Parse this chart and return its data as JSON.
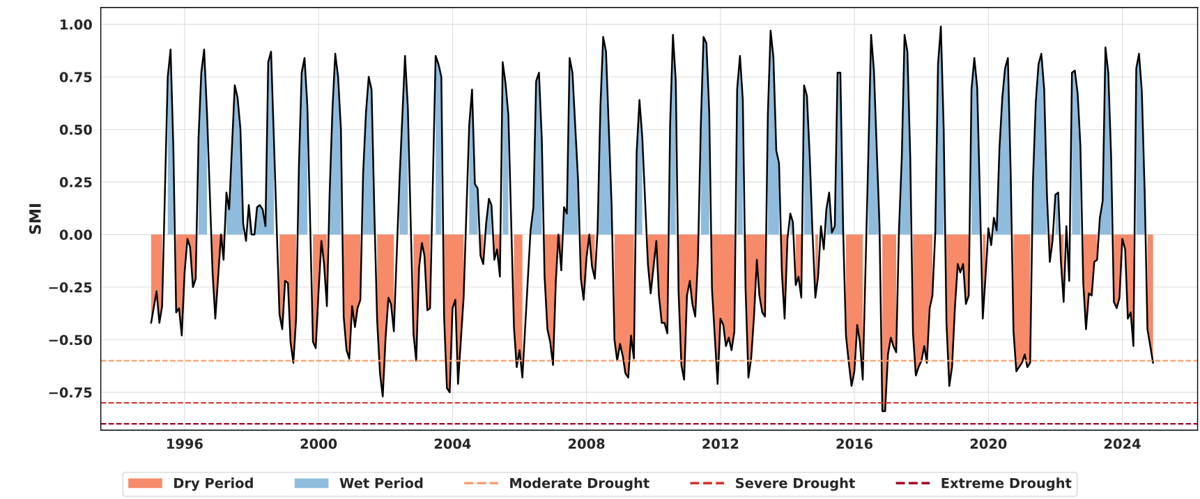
{
  "chart_data": {
    "type": "area",
    "ylabel": "SMI",
    "x": [
      "1995-01",
      "1995-03",
      "1995-04",
      "1995-05",
      "1995-07",
      "1995-08",
      "1995-09",
      "1995-10",
      "1995-11",
      "1995-12",
      "1996-01",
      "1996-02",
      "1996-03",
      "1996-04",
      "1996-05",
      "1996-06",
      "1996-07",
      "1996-08",
      "1996-09",
      "1996-11",
      "1996-12",
      "1997-02",
      "1997-03",
      "1997-04",
      "1997-05",
      "1997-07",
      "1997-08",
      "1997-09",
      "1997-10",
      "1997-11",
      "1997-12",
      "1998-01",
      "1998-02",
      "1998-03",
      "1998-04",
      "1998-05",
      "1998-06",
      "1998-07",
      "1998-08",
      "1998-09",
      "1998-11",
      "1998-12",
      "1999-01",
      "1999-02",
      "1999-03",
      "1999-04",
      "1999-05",
      "1999-06",
      "1999-07",
      "1999-08",
      "1999-09",
      "1999-11",
      "1999-12",
      "2000-01",
      "2000-02",
      "2000-03",
      "2000-04",
      "2000-05",
      "2000-06",
      "2000-07",
      "2000-08",
      "2000-09",
      "2000-10",
      "2000-11",
      "2000-12",
      "2001-01",
      "2001-02",
      "2001-03",
      "2001-04",
      "2001-05",
      "2001-06",
      "2001-07",
      "2001-08",
      "2001-09",
      "2001-10",
      "2001-11",
      "2001-12",
      "2002-01",
      "2002-02",
      "2002-03",
      "2002-04",
      "2002-06",
      "2002-08",
      "2002-09",
      "2002-11",
      "2002-12",
      "2003-01",
      "2003-02",
      "2003-03",
      "2003-04",
      "2003-05",
      "2003-07",
      "2003-08",
      "2003-09",
      "2003-10",
      "2003-11",
      "2003-12",
      "2004-01",
      "2004-02",
      "2004-03",
      "2004-05",
      "2004-07",
      "2004-08",
      "2004-09",
      "2004-10",
      "2004-11",
      "2004-12",
      "2005-01",
      "2005-02",
      "2005-03",
      "2005-04",
      "2005-05",
      "2005-06",
      "2005-07",
      "2005-08",
      "2005-09",
      "2005-11",
      "2005-12",
      "2006-01",
      "2006-02",
      "2006-05",
      "2006-06",
      "2006-07",
      "2006-08",
      "2006-09",
      "2006-10",
      "2006-11",
      "2006-12",
      "2007-01",
      "2007-02",
      "2007-03",
      "2007-04",
      "2007-05",
      "2007-06",
      "2007-07",
      "2007-08",
      "2007-10",
      "2007-11",
      "2007-12",
      "2008-01",
      "2008-02",
      "2008-03",
      "2008-04",
      "2008-05",
      "2008-06",
      "2008-07",
      "2008-08",
      "2008-10",
      "2008-11",
      "2008-12",
      "2009-01",
      "2009-02",
      "2009-03",
      "2009-04",
      "2009-05",
      "2009-06",
      "2009-07",
      "2009-08",
      "2009-09",
      "2009-11",
      "2009-12",
      "2010-02",
      "2010-03",
      "2010-04",
      "2010-05",
      "2010-06",
      "2010-07",
      "2010-08",
      "2010-09",
      "2010-10",
      "2010-11",
      "2010-12",
      "2011-01",
      "2011-02",
      "2011-03",
      "2011-04",
      "2011-05",
      "2011-06",
      "2011-07",
      "2011-08",
      "2011-09",
      "2011-10",
      "2011-11",
      "2011-12",
      "2012-01",
      "2012-02",
      "2012-03",
      "2012-04",
      "2012-05",
      "2012-06",
      "2012-07",
      "2012-08",
      "2012-09",
      "2012-10",
      "2012-11",
      "2012-12",
      "2013-01",
      "2013-02",
      "2013-03",
      "2013-04",
      "2013-05",
      "2013-06",
      "2013-07",
      "2013-08",
      "2013-09",
      "2013-10",
      "2013-11",
      "2013-12",
      "2014-01",
      "2014-02",
      "2014-03",
      "2014-04",
      "2014-05",
      "2014-06",
      "2014-07",
      "2014-08",
      "2014-09",
      "2014-10",
      "2014-11",
      "2014-12",
      "2015-01",
      "2015-02",
      "2015-03",
      "2015-04",
      "2015-05",
      "2015-06",
      "2015-07",
      "2015-08",
      "2015-09",
      "2015-10",
      "2015-11",
      "2015-12",
      "2016-01",
      "2016-02",
      "2016-03",
      "2016-04",
      "2016-06",
      "2016-07",
      "2016-08",
      "2016-10",
      "2016-11",
      "2016-12",
      "2017-01",
      "2017-02",
      "2017-03",
      "2017-04",
      "2017-05",
      "2017-06",
      "2017-07",
      "2017-08",
      "2017-09",
      "2017-10",
      "2017-11",
      "2017-12",
      "2018-01",
      "2018-02",
      "2018-03",
      "2018-04",
      "2018-05",
      "2018-06",
      "2018-07",
      "2018-08",
      "2018-09",
      "2018-10",
      "2018-11",
      "2018-12",
      "2019-01",
      "2019-02",
      "2019-03",
      "2019-04",
      "2019-05",
      "2019-06",
      "2019-07",
      "2019-08",
      "2019-09",
      "2019-10",
      "2019-11",
      "2019-12",
      "2020-01",
      "2020-02",
      "2020-03",
      "2020-04",
      "2020-05",
      "2020-06",
      "2020-07",
      "2020-08",
      "2020-09",
      "2020-10",
      "2020-11",
      "2020-12",
      "2021-01",
      "2021-02",
      "2021-03",
      "2021-04",
      "2021-05",
      "2021-06",
      "2021-07",
      "2021-08",
      "2021-09",
      "2021-10",
      "2021-11",
      "2021-12",
      "2022-01",
      "2022-02",
      "2022-03",
      "2022-04",
      "2022-05",
      "2022-06",
      "2022-07",
      "2022-08",
      "2022-09",
      "2022-10",
      "2022-11",
      "2022-12",
      "2023-01",
      "2023-02",
      "2023-03",
      "2023-04",
      "2023-05",
      "2023-06",
      "2023-07",
      "2023-08",
      "2023-09",
      "2023-10",
      "2023-11",
      "2023-12",
      "2024-01",
      "2024-02",
      "2024-03",
      "2024-04",
      "2024-05",
      "2024-06",
      "2024-07",
      "2024-08",
      "2024-09",
      "2024-10",
      "2024-11",
      "2024-12"
    ],
    "series": [
      {
        "name": "Dry Period",
        "color": "#f68a69",
        "values": [
          -0.42,
          -0.27,
          -0.42,
          -0.34,
          null,
          null,
          null,
          -0.37,
          -0.35,
          -0.48,
          -0.18,
          -0.02,
          -0.06,
          -0.25,
          -0.21,
          null,
          null,
          null,
          null,
          -0.18,
          -0.4,
          0.0,
          -0.12,
          null,
          null,
          null,
          null,
          null,
          null,
          null,
          null,
          null,
          null,
          null,
          null,
          null,
          null,
          null,
          null,
          null,
          -0.38,
          -0.45,
          -0.22,
          -0.23,
          -0.51,
          -0.61,
          -0.4,
          null,
          null,
          null,
          null,
          -0.51,
          -0.54,
          -0.27,
          -0.03,
          -0.14,
          -0.34,
          null,
          null,
          null,
          null,
          null,
          -0.39,
          -0.55,
          -0.59,
          -0.34,
          -0.44,
          -0.35,
          -0.31,
          null,
          null,
          null,
          null,
          null,
          -0.41,
          -0.66,
          -0.77,
          -0.49,
          -0.3,
          -0.33,
          -0.46,
          null,
          null,
          null,
          -0.47,
          -0.6,
          -0.16,
          -0.04,
          -0.1,
          -0.36,
          -0.35,
          null,
          null,
          null,
          -0.39,
          -0.73,
          -0.75,
          -0.35,
          -0.31,
          -0.71,
          -0.3,
          null,
          null,
          null,
          null,
          -0.1,
          -0.14,
          null,
          null,
          null,
          -0.12,
          -0.07,
          -0.2,
          null,
          null,
          null,
          -0.44,
          -0.63,
          -0.55,
          -0.68,
          null,
          null,
          null,
          null,
          null,
          -0.2,
          -0.45,
          -0.51,
          -0.62,
          -0.22,
          0.0,
          -0.17,
          null,
          null,
          null,
          null,
          null,
          -0.21,
          -0.31,
          -0.11,
          0.0,
          -0.15,
          -0.21,
          null,
          null,
          null,
          null,
          null,
          -0.5,
          -0.6,
          -0.52,
          -0.58,
          -0.66,
          -0.68,
          -0.48,
          -0.59,
          null,
          null,
          null,
          -0.14,
          -0.28,
          -0.03,
          -0.29,
          -0.42,
          -0.42,
          -0.47,
          null,
          null,
          null,
          -0.27,
          -0.62,
          -0.69,
          -0.29,
          -0.22,
          -0.33,
          -0.39,
          -0.11,
          null,
          null,
          null,
          null,
          -0.26,
          -0.49,
          -0.71,
          -0.4,
          -0.43,
          -0.53,
          -0.49,
          -0.55,
          -0.46,
          null,
          null,
          null,
          -0.26,
          -0.68,
          -0.59,
          -0.39,
          -0.12,
          -0.29,
          -0.37,
          -0.39,
          null,
          null,
          null,
          null,
          null,
          -0.18,
          -0.4,
          -0.02,
          null,
          null,
          -0.24,
          -0.2,
          -0.3,
          null,
          null,
          null,
          null,
          -0.3,
          -0.2,
          null,
          null,
          null,
          null,
          null,
          null,
          null,
          null,
          null,
          -0.48,
          -0.61,
          -0.72,
          -0.65,
          -0.43,
          -0.51,
          -0.69,
          null,
          null,
          null,
          null,
          -0.84,
          -0.84,
          -0.57,
          -0.49,
          -0.53,
          -0.56,
          null,
          null,
          null,
          null,
          null,
          -0.47,
          -0.67,
          -0.63,
          -0.6,
          -0.53,
          -0.61,
          -0.35,
          -0.29,
          null,
          null,
          null,
          null,
          -0.42,
          -0.72,
          -0.63,
          -0.35,
          -0.14,
          -0.18,
          -0.14,
          -0.33,
          -0.29,
          null,
          null,
          null,
          null,
          -0.4,
          -0.2,
          null,
          null,
          null,
          null,
          null,
          null,
          null,
          null,
          null,
          -0.46,
          -0.65,
          -0.63,
          -0.61,
          -0.57,
          -0.63,
          -0.61,
          null,
          null,
          null,
          null,
          null,
          null,
          -0.13,
          -0.03,
          null,
          null,
          -0.12,
          -0.32,
          null,
          null,
          null,
          null,
          null,
          null,
          -0.23,
          -0.45,
          -0.28,
          -0.29,
          -0.13,
          -0.12,
          null,
          null,
          null,
          null,
          null,
          -0.32,
          -0.35,
          -0.3,
          -0.02,
          -0.07,
          -0.4,
          -0.37,
          -0.53,
          null,
          null,
          null,
          null,
          -0.45,
          -0.53,
          -0.61
        ]
      },
      {
        "name": "Wet Period",
        "color": "#8fbcdc",
        "values": [
          null,
          null,
          null,
          null,
          0.75,
          0.88,
          0.4,
          null,
          null,
          null,
          null,
          null,
          null,
          null,
          null,
          0.46,
          0.77,
          0.88,
          0.58,
          null,
          null,
          null,
          null,
          0.2,
          0.12,
          0.71,
          0.65,
          0.5,
          0.05,
          null,
          0.14,
          0.0,
          0.0,
          0.13,
          0.14,
          0.12,
          0.04,
          0.82,
          0.87,
          0.45,
          null,
          null,
          null,
          null,
          null,
          null,
          null,
          0.33,
          0.77,
          0.84,
          0.61,
          null,
          null,
          null,
          null,
          null,
          null,
          0.2,
          0.6,
          0.86,
          0.75,
          0.5,
          null,
          null,
          null,
          null,
          null,
          null,
          null,
          0.29,
          0.58,
          0.75,
          0.69,
          0.1,
          null,
          null,
          null,
          null,
          null,
          null,
          null,
          0.25,
          0.85,
          0.6,
          null,
          null,
          null,
          null,
          null,
          null,
          null,
          0.85,
          0.81,
          0.75,
          null,
          null,
          null,
          null,
          null,
          null,
          null,
          0.52,
          0.69,
          0.24,
          0.22,
          null,
          null,
          0.05,
          0.17,
          0.14,
          null,
          null,
          null,
          0.82,
          0.72,
          0.57,
          null,
          null,
          null,
          null,
          0.02,
          0.13,
          0.73,
          0.77,
          0.45,
          null,
          null,
          null,
          null,
          null,
          null,
          null,
          0.13,
          0.1,
          0.84,
          0.77,
          0.26,
          null,
          null,
          null,
          null,
          null,
          null,
          0.02,
          0.61,
          0.94,
          0.87,
          0.14,
          null,
          null,
          null,
          null,
          null,
          null,
          null,
          null,
          0.39,
          0.64,
          0.46,
          null,
          null,
          null,
          null,
          null,
          null,
          null,
          0.52,
          0.95,
          0.73,
          null,
          null,
          null,
          null,
          null,
          null,
          null,
          null,
          0.52,
          0.94,
          0.91,
          0.58,
          null,
          null,
          null,
          null,
          null,
          null,
          null,
          null,
          null,
          0.69,
          0.85,
          0.64,
          null,
          null,
          null,
          null,
          null,
          null,
          null,
          null,
          0.57,
          0.97,
          0.84,
          0.4,
          0.34,
          null,
          null,
          null,
          0.1,
          0.06,
          null,
          null,
          null,
          0.71,
          0.66,
          0.37,
          0.01,
          null,
          null,
          null,
          null,
          0.12,
          0.2,
          0.01,
          0.04,
          0.77,
          0.77,
          0.01,
          null,
          null,
          null,
          null,
          null,
          null,
          null,
          0.38,
          0.95,
          0.78,
          0.04,
          null,
          null,
          null,
          null,
          null,
          null,
          0.02,
          0.37,
          0.95,
          0.87,
          0.37,
          null,
          null,
          null,
          null,
          null,
          null,
          null,
          null,
          0.01,
          0.81,
          0.99,
          0.5,
          null,
          null,
          null,
          null,
          null,
          null,
          null,
          null,
          null,
          0.69,
          0.84,
          0.7,
          0.18,
          null,
          null,
          null,
          null,
          0.08,
          0.02,
          0.41,
          0.65,
          0.79,
          0.84,
          0.28,
          null,
          null,
          null,
          null,
          null,
          null,
          null,
          0.25,
          0.63,
          0.81,
          0.86,
          0.69,
          0.19,
          null,
          null,
          0.19,
          0.2,
          null,
          null,
          null,
          null,
          0.77,
          0.78,
          0.67,
          0.42,
          null,
          null,
          null,
          null,
          null,
          null,
          0.08,
          0.16,
          0.89,
          0.77,
          0.37,
          null,
          null,
          null,
          null,
          null,
          null,
          null,
          null,
          0.79,
          0.86,
          0.68,
          0.2,
          null,
          null,
          null
        ]
      },
      {
        "type": "line",
        "color": "#000000",
        "values": [
          -0.42,
          -0.27,
          -0.42,
          -0.34,
          0.75,
          0.88,
          0.4,
          -0.37,
          -0.35,
          -0.48,
          -0.18,
          -0.02,
          -0.06,
          -0.25,
          -0.21,
          0.46,
          0.77,
          0.88,
          0.58,
          -0.18,
          -0.4,
          0.0,
          -0.12,
          0.2,
          0.12,
          0.71,
          0.65,
          0.5,
          0.05,
          -0.03,
          0.14,
          0.0,
          0.0,
          0.13,
          0.14,
          0.12,
          0.04,
          0.82,
          0.87,
          0.45,
          -0.38,
          -0.45,
          -0.22,
          -0.23,
          -0.51,
          -0.61,
          -0.4,
          0.33,
          0.77,
          0.84,
          0.61,
          -0.51,
          -0.54,
          -0.27,
          -0.03,
          -0.14,
          -0.34,
          0.2,
          0.6,
          0.86,
          0.75,
          0.5,
          -0.39,
          -0.55,
          -0.59,
          -0.34,
          -0.44,
          -0.35,
          -0.31,
          0.29,
          0.58,
          0.75,
          0.69,
          0.1,
          -0.41,
          -0.66,
          -0.77,
          -0.49,
          -0.3,
          -0.33,
          -0.46,
          0.25,
          0.85,
          0.6,
          -0.47,
          -0.6,
          -0.16,
          -0.04,
          -0.1,
          -0.36,
          -0.35,
          0.85,
          0.81,
          0.75,
          -0.39,
          -0.73,
          -0.75,
          -0.35,
          -0.31,
          -0.71,
          -0.3,
          0.52,
          0.69,
          0.24,
          0.22,
          -0.1,
          -0.14,
          0.05,
          0.17,
          0.14,
          -0.12,
          -0.07,
          -0.2,
          0.82,
          0.72,
          0.57,
          -0.44,
          -0.63,
          -0.55,
          -0.68,
          0.02,
          0.13,
          0.73,
          0.77,
          0.45,
          -0.2,
          -0.45,
          -0.51,
          -0.62,
          -0.22,
          0.0,
          -0.17,
          0.13,
          0.1,
          0.84,
          0.77,
          0.26,
          -0.21,
          -0.31,
          -0.11,
          0.0,
          -0.15,
          -0.21,
          0.02,
          0.61,
          0.94,
          0.87,
          0.14,
          -0.5,
          -0.6,
          -0.52,
          -0.58,
          -0.66,
          -0.68,
          -0.48,
          -0.59,
          0.39,
          0.64,
          0.46,
          -0.14,
          -0.28,
          -0.03,
          -0.29,
          -0.42,
          -0.42,
          -0.47,
          0.52,
          0.95,
          0.73,
          -0.27,
          -0.62,
          -0.69,
          -0.29,
          -0.22,
          -0.33,
          -0.39,
          -0.11,
          0.52,
          0.94,
          0.91,
          0.58,
          -0.26,
          -0.49,
          -0.71,
          -0.4,
          -0.43,
          -0.53,
          -0.49,
          -0.55,
          -0.46,
          0.69,
          0.85,
          0.64,
          -0.26,
          -0.68,
          -0.59,
          -0.39,
          -0.12,
          -0.29,
          -0.37,
          -0.39,
          0.57,
          0.97,
          0.84,
          0.4,
          0.34,
          -0.18,
          -0.4,
          -0.02,
          0.1,
          0.06,
          -0.24,
          -0.2,
          -0.3,
          0.71,
          0.66,
          0.37,
          0.01,
          -0.3,
          -0.2,
          0.04,
          -0.07,
          0.12,
          0.2,
          0.01,
          0.04,
          0.77,
          0.77,
          0.01,
          -0.48,
          -0.61,
          -0.72,
          -0.65,
          -0.43,
          -0.51,
          -0.69,
          0.38,
          0.95,
          0.78,
          0.04,
          -0.84,
          -0.84,
          -0.57,
          -0.49,
          -0.53,
          -0.56,
          0.02,
          0.37,
          0.95,
          0.87,
          0.37,
          -0.47,
          -0.67,
          -0.63,
          -0.6,
          -0.53,
          -0.61,
          -0.35,
          -0.29,
          0.01,
          0.81,
          0.99,
          0.5,
          -0.42,
          -0.72,
          -0.63,
          -0.35,
          -0.14,
          -0.18,
          -0.14,
          -0.33,
          -0.29,
          0.69,
          0.84,
          0.7,
          0.18,
          -0.4,
          -0.2,
          0.03,
          -0.05,
          0.08,
          0.02,
          0.41,
          0.65,
          0.79,
          0.84,
          0.28,
          -0.46,
          -0.65,
          -0.63,
          -0.61,
          -0.57,
          -0.63,
          -0.61,
          0.25,
          0.63,
          0.81,
          0.86,
          0.69,
          0.19,
          -0.13,
          -0.03,
          0.19,
          0.2,
          -0.12,
          -0.32,
          0.04,
          -0.22,
          0.77,
          0.78,
          0.67,
          0.42,
          -0.23,
          -0.45,
          -0.28,
          -0.29,
          -0.13,
          -0.12,
          0.08,
          0.16,
          0.89,
          0.77,
          0.37,
          -0.32,
          -0.35,
          -0.3,
          -0.02,
          -0.07,
          -0.4,
          -0.37,
          -0.53,
          0.79,
          0.86,
          0.68,
          0.2,
          -0.45,
          -0.53,
          -0.61
        ]
      }
    ],
    "ref_lines": [
      {
        "axis": "y",
        "value": -0.6,
        "label": "Moderate Drought",
        "color": "#fc9d6e",
        "line_style": "dashed"
      },
      {
        "axis": "y",
        "value": -0.8,
        "label": "Severe Drought",
        "color": "#d73027",
        "line_style": "dashed"
      },
      {
        "axis": "y",
        "value": -0.9,
        "label": "Extreme Drought",
        "color": "#a50026",
        "line_style": "dashed"
      }
    ],
    "xlim": [
      "1993-07",
      "2026-04"
    ],
    "xticks": [
      {
        "value": "1996",
        "label": "1996"
      },
      {
        "value": "2000",
        "label": "2000"
      },
      {
        "value": "2004",
        "label": "2004"
      },
      {
        "value": "2008",
        "label": "2008"
      },
      {
        "value": "2012",
        "label": "2012"
      },
      {
        "value": "2016",
        "label": "2016"
      },
      {
        "value": "2020",
        "label": "2020"
      },
      {
        "value": "2024",
        "label": "2024"
      }
    ],
    "ylim": [
      -0.93,
      1.08
    ],
    "yticks": [
      {
        "value": -0.75,
        "label": "−0.75"
      },
      {
        "value": -0.5,
        "label": "−0.50"
      },
      {
        "value": -0.25,
        "label": "−0.25"
      },
      {
        "value": 0,
        "label": "0.00"
      },
      {
        "value": 0.25,
        "label": "0.25"
      },
      {
        "value": 0.5,
        "label": "0.50"
      },
      {
        "value": 0.75,
        "label": "0.75"
      },
      {
        "value": 1,
        "label": "1.00"
      }
    ],
    "grid": true,
    "legend": "bottom",
    "marker": "none",
    "line_style": "solid"
  }
}
